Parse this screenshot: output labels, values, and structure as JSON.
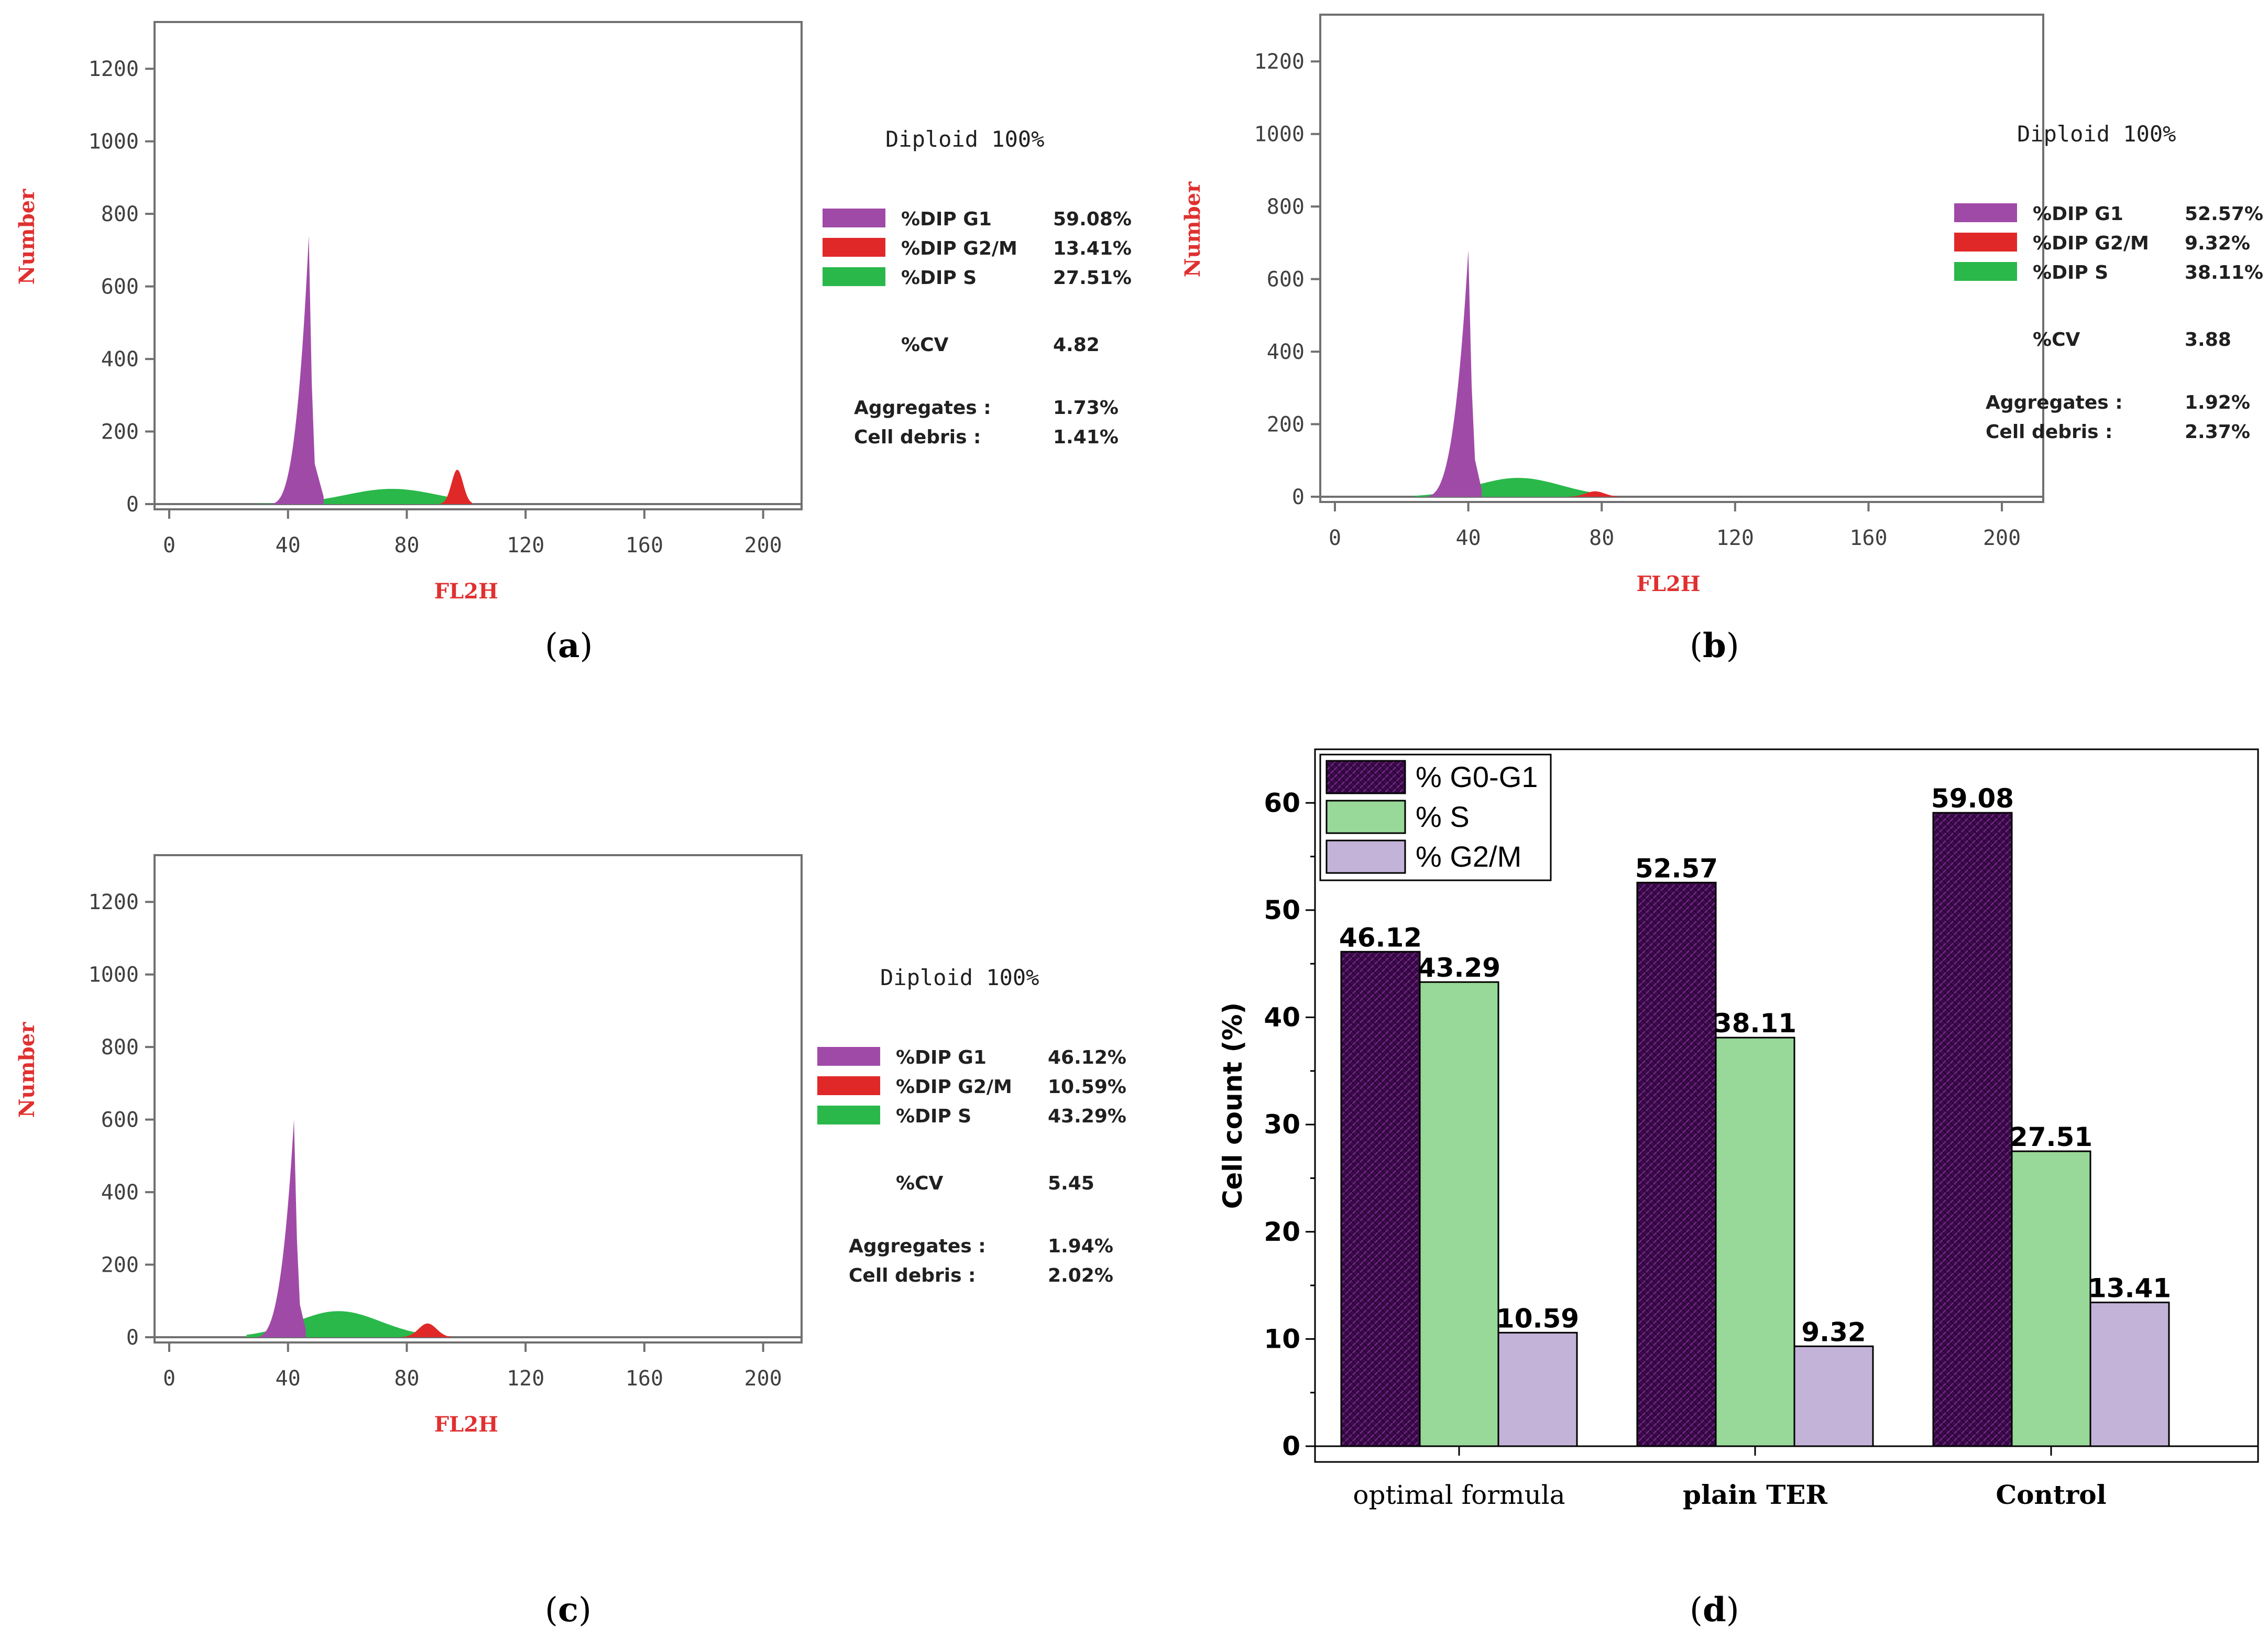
{
  "histograms": [
    {
      "caption": "a",
      "axes": {
        "x_ticks": [
          "0",
          "40",
          "80",
          "120",
          "160",
          "200"
        ],
        "x_values": [
          0,
          40,
          80,
          120,
          160,
          200
        ],
        "y_ticks": [
          "0",
          "200",
          "400",
          "600",
          "800",
          "1000",
          "1200"
        ],
        "y_values": [
          0,
          200,
          400,
          600,
          800,
          1000,
          1200
        ],
        "xlim": [
          0,
          208
        ],
        "ylim": [
          0,
          1300
        ],
        "xlabel": "FL2H",
        "ylabel": "Number"
      },
      "curves": {
        "g1_peak_x": 47,
        "g1_peak_y": 740,
        "g1_start_x": 33,
        "g1_end_x": 52,
        "s_start_x": 30,
        "s_center_x": 75,
        "s_end_x": 100,
        "s_peak_y": 42,
        "g2m_center_x": 97,
        "g2m_peak_y": 95,
        "g2m_start_x": 91,
        "g2m_end_x": 102
      },
      "info": {
        "diploid": "Diploid 100%",
        "rows": [
          {
            "label": "%DIP G1",
            "value": "59.08%",
            "color": "#a04aa8"
          },
          {
            "label": "%DIP G2/M",
            "value": "13.41%",
            "color": "#e02828"
          },
          {
            "label": "%DIP S",
            "value": "27.51%",
            "color": "#2ab84a"
          }
        ],
        "cv_label": "%CV",
        "cv_value": "4.82",
        "agg_label": "Aggregates :",
        "agg_value": "1.73%",
        "debris_label": "Cell debris  :",
        "debris_value": "1.41%"
      }
    },
    {
      "caption": "b",
      "axes": {
        "x_ticks": [
          "0",
          "40",
          "80",
          "120",
          "160",
          "200"
        ],
        "x_values": [
          0,
          40,
          80,
          120,
          160,
          200
        ],
        "y_ticks": [
          "0",
          "200",
          "400",
          "600",
          "800",
          "1000",
          "1200"
        ],
        "y_values": [
          0,
          200,
          400,
          600,
          800,
          1000,
          1200
        ],
        "xlim": [
          0,
          208
        ],
        "ylim": [
          0,
          1300
        ],
        "xlabel": "FL2H",
        "ylabel": "Number"
      },
      "curves": {
        "g1_peak_x": 40,
        "g1_peak_y": 680,
        "g1_start_x": 26,
        "g1_end_x": 44,
        "s_start_x": 24,
        "s_center_x": 55,
        "s_end_x": 82,
        "s_peak_y": 52,
        "g2m_center_x": 78,
        "g2m_peak_y": 15,
        "g2m_start_x": 70,
        "g2m_end_x": 86
      },
      "info": {
        "diploid": "Diploid 100%",
        "rows": [
          {
            "label": "%DIP G1",
            "value": "52.57%",
            "color": "#a04aa8"
          },
          {
            "label": "%DIP G2/M",
            "value": "9.32%",
            "color": "#e02828"
          },
          {
            "label": "%DIP S",
            "value": "38.11%",
            "color": "#2ab84a"
          }
        ],
        "cv_label": "%CV",
        "cv_value": "3.88",
        "agg_label": "Aggregates :",
        "agg_value": "1.92%",
        "debris_label": "Cell debris  :",
        "debris_value": "2.37%"
      }
    },
    {
      "caption": "c",
      "axes": {
        "x_ticks": [
          "0",
          "40",
          "80",
          "120",
          "160",
          "200"
        ],
        "x_values": [
          0,
          40,
          80,
          120,
          160,
          200
        ],
        "y_ticks": [
          "0",
          "200",
          "400",
          "600",
          "800",
          "1000",
          "1200"
        ],
        "y_values": [
          0,
          200,
          400,
          600,
          800,
          1000,
          1200
        ],
        "xlim": [
          0,
          208
        ],
        "ylim": [
          0,
          1300
        ],
        "xlabel": "FL2H",
        "ylabel": "Number"
      },
      "curves": {
        "g1_peak_x": 42,
        "g1_peak_y": 600,
        "g1_start_x": 28,
        "g1_end_x": 46,
        "s_start_x": 26,
        "s_center_x": 57,
        "s_end_x": 90,
        "s_peak_y": 72,
        "g2m_center_x": 87,
        "g2m_peak_y": 38,
        "g2m_start_x": 78,
        "g2m_end_x": 95
      },
      "info": {
        "diploid": "Diploid 100%",
        "rows": [
          {
            "label": "%DIP G1",
            "value": "46.12%",
            "color": "#a04aa8"
          },
          {
            "label": "%DIP G2/M",
            "value": "10.59%",
            "color": "#e02828"
          },
          {
            "label": "%DIP S",
            "value": "43.29%",
            "color": "#2ab84a"
          }
        ],
        "cv_label": "%CV",
        "cv_value": "5.45",
        "agg_label": "Aggregates :",
        "agg_value": "1.94%",
        "debris_label": "Cell debris  :",
        "debris_value": "2.02%"
      }
    }
  ],
  "chart_data": {
    "type": "bar",
    "caption": "d",
    "categories": [
      "optimal formula",
      "plain TER",
      "Control"
    ],
    "series": [
      {
        "name": "% G0-G1",
        "values": [
          46.12,
          52.57,
          59.08
        ],
        "labels": [
          "46.12",
          "52.57",
          "59.08"
        ],
        "color": "#3d0a4c"
      },
      {
        "name": "% S",
        "values": [
          43.29,
          38.11,
          27.51
        ],
        "labels": [
          "43.29",
          "38.11",
          "27.51"
        ],
        "color": "#98d898"
      },
      {
        "name": "% G2/M",
        "values": [
          10.59,
          9.32,
          13.41
        ],
        "labels": [
          "10.59",
          "9.32",
          "13.41"
        ],
        "color": "#c3b3d8"
      }
    ],
    "ylabel": "Cell count (%)",
    "xlabel": "",
    "ylim": [
      0,
      65
    ],
    "y_ticks": [
      0,
      10,
      20,
      30,
      40,
      50,
      60
    ],
    "legend_position": "top-left"
  }
}
